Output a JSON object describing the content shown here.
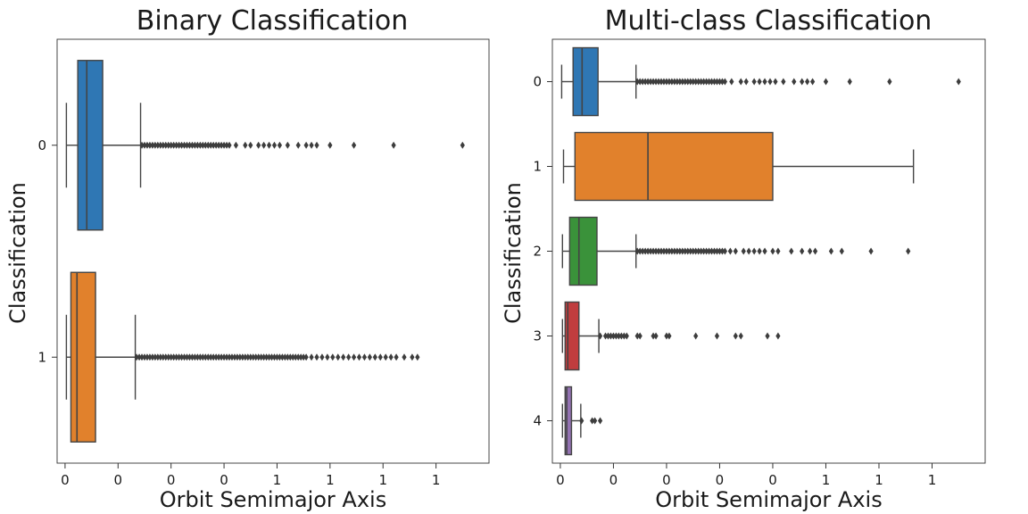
{
  "chart_data": [
    {
      "type": "boxplot",
      "orientation": "horizontal",
      "title": "Binary Classification",
      "xlabel": "Orbit Semimajor Axis",
      "ylabel": "Classification",
      "xlim": [
        -0.03,
        1.6
      ],
      "x_tick_values": [
        0,
        0.2,
        0.4,
        0.6,
        0.8,
        1.0,
        1.2,
        1.4
      ],
      "x_tick_labels": [
        "0",
        "0",
        "0",
        "0",
        "1",
        "1",
        "1",
        "1"
      ],
      "categories": [
        "0",
        "1"
      ],
      "boxes": [
        {
          "category": "0",
          "color": "#2f77b4",
          "whisker_low": 0.005,
          "q1": 0.048,
          "median": 0.082,
          "q3": 0.142,
          "whisker_high": 0.285,
          "outliers": [
            0.29,
            0.3,
            0.31,
            0.32,
            0.33,
            0.34,
            0.35,
            0.36,
            0.37,
            0.38,
            0.39,
            0.4,
            0.41,
            0.42,
            0.43,
            0.44,
            0.45,
            0.46,
            0.47,
            0.48,
            0.49,
            0.5,
            0.51,
            0.52,
            0.53,
            0.54,
            0.55,
            0.56,
            0.57,
            0.58,
            0.59,
            0.6,
            0.61,
            0.62,
            0.645,
            0.68,
            0.7,
            0.73,
            0.75,
            0.77,
            0.79,
            0.81,
            0.84,
            0.88,
            0.91,
            0.93,
            0.95,
            1.0,
            1.09,
            1.24,
            1.5
          ]
        },
        {
          "category": "1",
          "color": "#e1812c",
          "whisker_low": 0.005,
          "q1": 0.022,
          "median": 0.045,
          "q3": 0.115,
          "whisker_high": 0.265,
          "outliers": [
            0.27,
            0.28,
            0.29,
            0.3,
            0.31,
            0.32,
            0.33,
            0.34,
            0.35,
            0.36,
            0.37,
            0.38,
            0.39,
            0.4,
            0.41,
            0.42,
            0.43,
            0.44,
            0.45,
            0.46,
            0.47,
            0.48,
            0.49,
            0.5,
            0.51,
            0.52,
            0.53,
            0.54,
            0.55,
            0.56,
            0.57,
            0.58,
            0.59,
            0.6,
            0.61,
            0.62,
            0.63,
            0.64,
            0.65,
            0.66,
            0.67,
            0.68,
            0.69,
            0.7,
            0.71,
            0.72,
            0.73,
            0.74,
            0.75,
            0.76,
            0.77,
            0.78,
            0.79,
            0.8,
            0.81,
            0.82,
            0.83,
            0.84,
            0.85,
            0.86,
            0.87,
            0.88,
            0.89,
            0.9,
            0.91,
            0.93,
            0.95,
            0.97,
            0.99,
            1.01,
            1.03,
            1.05,
            1.07,
            1.09,
            1.11,
            1.13,
            1.15,
            1.17,
            1.19,
            1.21,
            1.23,
            1.25,
            1.28,
            1.31,
            1.33
          ]
        }
      ]
    },
    {
      "type": "boxplot",
      "orientation": "horizontal",
      "title": "Multi-class Classification",
      "xlabel": "Orbit Semimajor Axis",
      "ylabel": "Classification",
      "xlim": [
        -0.03,
        1.6
      ],
      "x_tick_values": [
        0,
        0.2,
        0.4,
        0.6,
        0.8,
        1.0,
        1.2,
        1.4
      ],
      "x_tick_labels": [
        "0",
        "0",
        "0",
        "0",
        "0",
        "1",
        "1",
        "1"
      ],
      "categories": [
        "0",
        "1",
        "2",
        "3",
        "4"
      ],
      "boxes": [
        {
          "category": "0",
          "color": "#2f77b4",
          "whisker_low": 0.005,
          "q1": 0.048,
          "median": 0.082,
          "q3": 0.142,
          "whisker_high": 0.285,
          "outliers": [
            0.29,
            0.3,
            0.31,
            0.32,
            0.33,
            0.34,
            0.35,
            0.36,
            0.37,
            0.38,
            0.39,
            0.4,
            0.41,
            0.42,
            0.43,
            0.44,
            0.45,
            0.46,
            0.47,
            0.48,
            0.49,
            0.5,
            0.51,
            0.52,
            0.53,
            0.54,
            0.55,
            0.56,
            0.57,
            0.58,
            0.59,
            0.6,
            0.61,
            0.62,
            0.645,
            0.68,
            0.7,
            0.73,
            0.75,
            0.77,
            0.79,
            0.81,
            0.84,
            0.88,
            0.91,
            0.93,
            0.95,
            1.0,
            1.09,
            1.24,
            1.5
          ]
        },
        {
          "category": "1",
          "color": "#e1812c",
          "whisker_low": 0.012,
          "q1": 0.055,
          "median": 0.33,
          "q3": 0.8,
          "whisker_high": 1.33,
          "outliers": []
        },
        {
          "category": "2",
          "color": "#3a923a",
          "whisker_low": 0.008,
          "q1": 0.035,
          "median": 0.07,
          "q3": 0.138,
          "whisker_high": 0.285,
          "outliers": [
            0.29,
            0.3,
            0.31,
            0.32,
            0.33,
            0.34,
            0.35,
            0.36,
            0.37,
            0.38,
            0.39,
            0.4,
            0.41,
            0.42,
            0.43,
            0.44,
            0.45,
            0.46,
            0.47,
            0.48,
            0.49,
            0.5,
            0.51,
            0.52,
            0.53,
            0.54,
            0.55,
            0.56,
            0.57,
            0.58,
            0.59,
            0.6,
            0.61,
            0.62,
            0.64,
            0.66,
            0.69,
            0.71,
            0.73,
            0.75,
            0.77,
            0.8,
            0.82,
            0.87,
            0.91,
            0.94,
            0.96,
            1.02,
            1.06,
            1.17,
            1.31
          ]
        },
        {
          "category": "3",
          "color": "#c03d3e",
          "whisker_low": 0.008,
          "q1": 0.018,
          "median": 0.028,
          "q3": 0.07,
          "whisker_high": 0.145,
          "outliers": [
            0.15,
            0.17,
            0.18,
            0.19,
            0.2,
            0.21,
            0.22,
            0.23,
            0.24,
            0.25,
            0.29,
            0.3,
            0.35,
            0.36,
            0.4,
            0.41,
            0.51,
            0.59,
            0.66,
            0.68,
            0.78,
            0.82
          ]
        },
        {
          "category": "4",
          "color": "#9372b2",
          "whisker_low": 0.008,
          "q1": 0.018,
          "median": 0.024,
          "q3": 0.042,
          "whisker_high": 0.077,
          "outliers": [
            0.08,
            0.12,
            0.13,
            0.15
          ]
        }
      ]
    }
  ]
}
